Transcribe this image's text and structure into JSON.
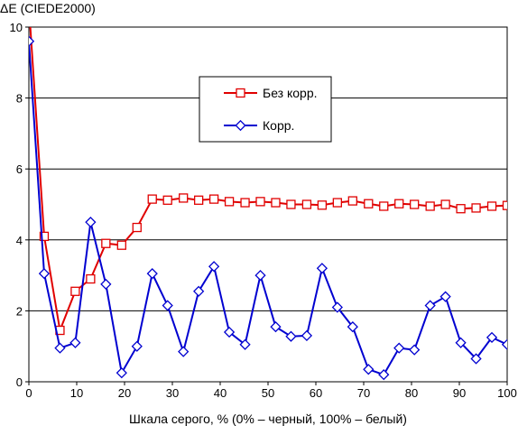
{
  "chart_data": {
    "type": "line",
    "title": "",
    "ylabel": "ΔE (CIEDE2000)",
    "xlabel": "Шкала серого, % (0% – черный, 100% – белый)",
    "xlim": [
      0,
      100
    ],
    "ylim": [
      0,
      10
    ],
    "x_ticks": [
      "0",
      "10",
      "20",
      "30",
      "40",
      "50",
      "60",
      "70",
      "80",
      "90",
      "100"
    ],
    "y_ticks": [
      "0",
      "2",
      "4",
      "6",
      "8",
      "10"
    ],
    "grid": "horizontal",
    "legend_position": "top-center-right",
    "x": [
      0,
      3.2,
      6.5,
      9.7,
      12.9,
      16.1,
      19.4,
      22.6,
      25.8,
      29.0,
      32.3,
      35.5,
      38.7,
      41.9,
      45.2,
      48.4,
      51.6,
      54.8,
      58.1,
      61.3,
      64.5,
      67.7,
      71.0,
      74.2,
      77.4,
      80.6,
      83.9,
      87.1,
      90.3,
      93.5,
      96.8,
      100
    ],
    "series": [
      {
        "name": "Без корр.",
        "color": "#e00000",
        "marker": "square",
        "values": [
          10.6,
          4.1,
          1.45,
          2.55,
          2.9,
          3.9,
          3.85,
          4.35,
          5.15,
          5.12,
          5.18,
          5.12,
          5.15,
          5.08,
          5.05,
          5.08,
          5.05,
          5.0,
          5.0,
          4.98,
          5.05,
          5.1,
          5.02,
          4.95,
          5.02,
          5.0,
          4.95,
          5.0,
          4.88,
          4.9,
          4.95,
          4.97
        ]
      },
      {
        "name": "Корр.",
        "color": "#0000d0",
        "marker": "diamond",
        "values": [
          9.6,
          3.05,
          0.95,
          1.1,
          4.5,
          2.75,
          0.25,
          1.0,
          3.05,
          2.15,
          0.85,
          2.55,
          3.25,
          1.4,
          1.05,
          3.0,
          1.55,
          1.28,
          1.3,
          3.2,
          2.1,
          1.55,
          0.35,
          0.2,
          0.95,
          0.9,
          2.15,
          2.4,
          1.1,
          0.65,
          1.25,
          1.05
        ]
      }
    ]
  }
}
